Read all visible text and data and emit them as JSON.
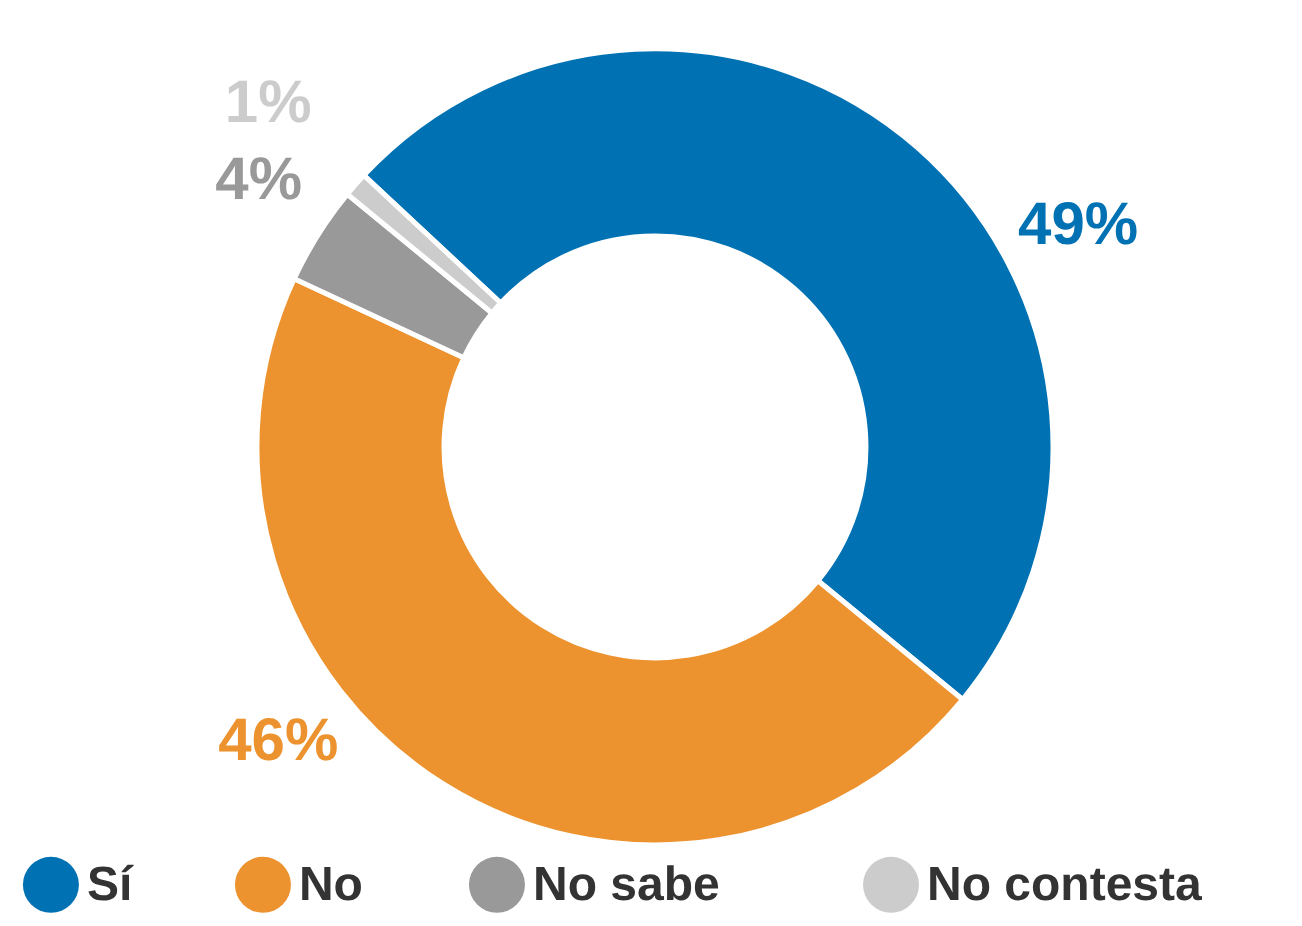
{
  "chart_data": {
    "type": "donut",
    "categories": [
      "Sí",
      "No",
      "No sabe",
      "No contesta"
    ],
    "values": [
      49,
      46,
      4,
      1
    ],
    "colors": [
      "#0071b3",
      "#ec922e",
      "#999999",
      "#cccccc"
    ],
    "value_labels": [
      "49%",
      "46%",
      "4%",
      "1%"
    ],
    "legend": "bottom"
  }
}
